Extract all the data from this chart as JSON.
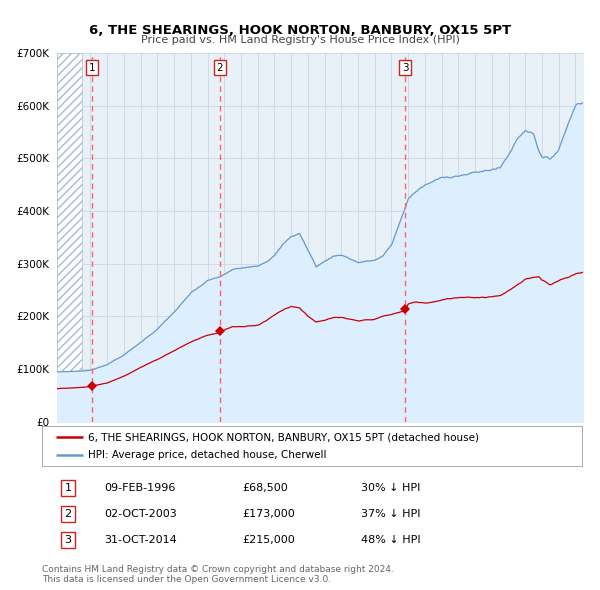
{
  "title": "6, THE SHEARINGS, HOOK NORTON, BANBURY, OX15 5PT",
  "subtitle": "Price paid vs. HM Land Registry's House Price Index (HPI)",
  "legend_line1": "6, THE SHEARINGS, HOOK NORTON, BANBURY, OX15 5PT (detached house)",
  "legend_line2": "HPI: Average price, detached house, Cherwell",
  "footer1": "Contains HM Land Registry data © Crown copyright and database right 2024.",
  "footer2": "This data is licensed under the Open Government Licence v3.0.",
  "transactions": [
    {
      "num": 1,
      "date": "09-FEB-1996",
      "price": 68500,
      "hpi_pct": "30% ↓ HPI",
      "date_val": 1996.11
    },
    {
      "num": 2,
      "date": "02-OCT-2003",
      "price": 173000,
      "hpi_pct": "37% ↓ HPI",
      "date_val": 2003.75
    },
    {
      "num": 3,
      "date": "31-OCT-2014",
      "price": 215000,
      "hpi_pct": "48% ↓ HPI",
      "date_val": 2014.83
    }
  ],
  "red_line_color": "#cc0000",
  "blue_line_color": "#6699cc",
  "blue_fill_color": "#ddeeff",
  "hatch_color": "#aabbcc",
  "dashed_color": "#ff6666",
  "grid_color": "#c8d8e8",
  "bg_color": "#e8f0f8",
  "ylim": [
    0,
    700000
  ],
  "yticks": [
    0,
    100000,
    200000,
    300000,
    400000,
    500000,
    600000,
    700000
  ],
  "xlim_start": 1994.0,
  "xlim_end": 2025.5,
  "hatch_end": 1995.5
}
